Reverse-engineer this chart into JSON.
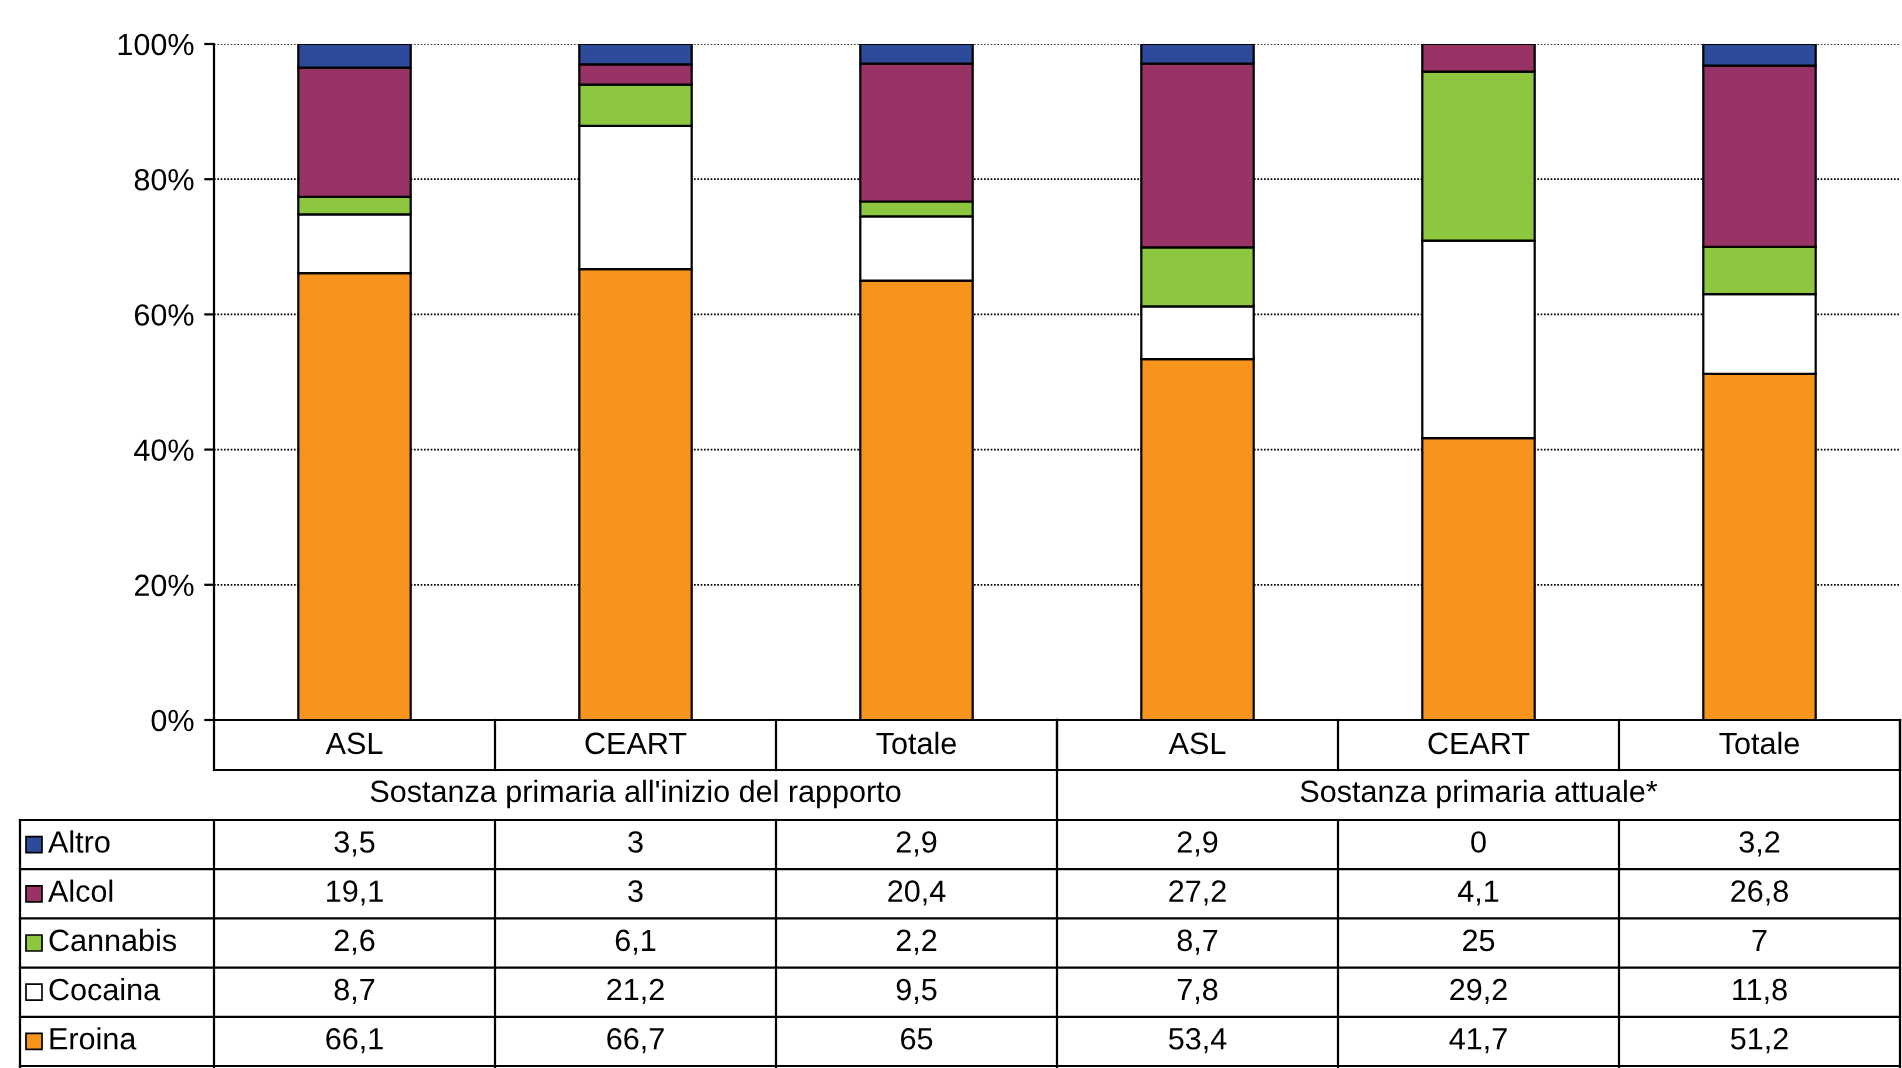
{
  "chart_data": {
    "type": "bar",
    "stacked": true,
    "categories": [
      "ASL",
      "CEART",
      "Totale",
      "ASL",
      "CEART",
      "Totale"
    ],
    "annotations": [
      "Sostanza primaria all'inizio del rapporto",
      "Sostanza primaria attuale*"
    ],
    "series": [
      {
        "name": "Eroina",
        "color": "#f7941d",
        "values": [
          66.1,
          66.7,
          65,
          53.4,
          41.7,
          51.2
        ],
        "value_labels": [
          "66,1",
          "66,7",
          "65",
          "53,4",
          "41,7",
          "51,2"
        ]
      },
      {
        "name": "Cocaina",
        "color": "#ffffff",
        "values": [
          8.7,
          21.2,
          9.5,
          7.8,
          29.2,
          11.8
        ],
        "value_labels": [
          "8,7",
          "21,2",
          "9,5",
          "7,8",
          "29,2",
          "11,8"
        ]
      },
      {
        "name": "Cannabis",
        "color": "#8dc63f",
        "values": [
          2.6,
          6.1,
          2.2,
          8.7,
          25,
          7
        ],
        "value_labels": [
          "2,6",
          "6,1",
          "2,2",
          "8,7",
          "25",
          "7"
        ]
      },
      {
        "name": "Alcol",
        "color": "#993366",
        "values": [
          19.1,
          3,
          20.4,
          27.2,
          4.1,
          26.8
        ],
        "value_labels": [
          "19,1",
          "3",
          "20,4",
          "27,2",
          "4,1",
          "26,8"
        ]
      },
      {
        "name": "Altro",
        "color": "#2e4b9b",
        "values": [
          3.5,
          3,
          2.9,
          2.9,
          0,
          3.2
        ],
        "value_labels": [
          "3,5",
          "3",
          "2,9",
          "2,9",
          "0",
          "3,2"
        ]
      }
    ],
    "ylim": [
      0,
      100
    ],
    "yticks": [
      {
        "value": 0,
        "label": "0%"
      },
      {
        "value": 20,
        "label": "20%"
      },
      {
        "value": 40,
        "label": "40%"
      },
      {
        "value": 60,
        "label": "60%"
      },
      {
        "value": 80,
        "label": "80%"
      },
      {
        "value": 100,
        "label": "100%"
      }
    ],
    "grid": "y",
    "legend": "bottom left"
  }
}
